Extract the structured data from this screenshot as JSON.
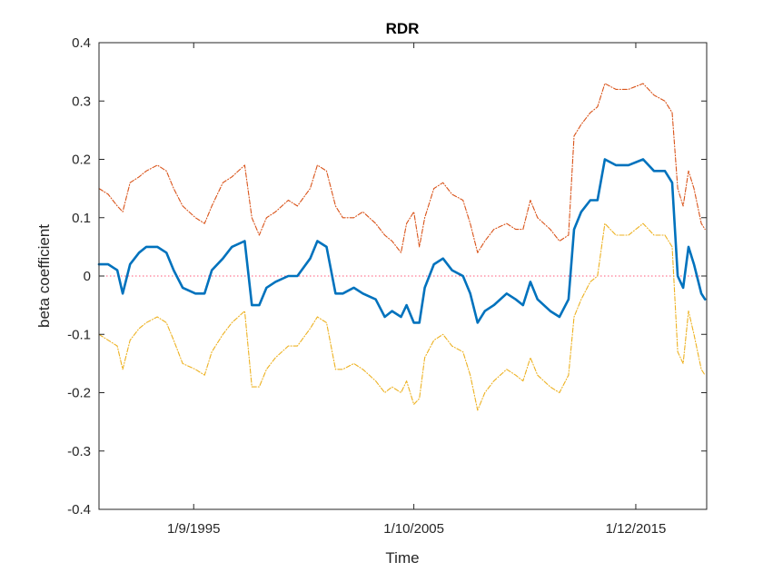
{
  "chart_data": {
    "type": "line",
    "title": "RDR",
    "xlabel": "Time",
    "ylabel": "beta coefficient",
    "xlim": [
      "1991-05-01",
      "2019-03-01"
    ],
    "ylim": [
      -0.4,
      0.4
    ],
    "yticks": [
      -0.4,
      -0.3,
      -0.2,
      -0.1,
      0,
      0.1,
      0.2,
      0.3,
      0.4
    ],
    "ytick_labels": [
      "-0.4",
      "-0.3",
      "-0.2",
      "-0.1",
      "0",
      "0.1",
      "0.2",
      "0.3",
      "0.4"
    ],
    "xticks": [
      "1995-09-01",
      "2005-10-01",
      "2015-12-01"
    ],
    "xtick_labels": [
      "1/9/1995",
      "1/10/2005",
      "1/12/2015"
    ],
    "grid": false,
    "zero_line": {
      "y": 0,
      "color": "#ff5a7a",
      "style": "dotted"
    },
    "colors": {
      "beta": "#0072bd",
      "upper": "#d95319",
      "lower": "#edb120"
    },
    "series": [
      {
        "key": "upper",
        "style": "dashdot",
        "points": [
          [
            "1991-05-01",
            0.15
          ],
          [
            "1991-10-01",
            0.14
          ],
          [
            "1992-03-01",
            0.12
          ],
          [
            "1992-06-01",
            0.11
          ],
          [
            "1992-10-01",
            0.16
          ],
          [
            "1993-03-01",
            0.17
          ],
          [
            "1993-07-01",
            0.18
          ],
          [
            "1994-01-01",
            0.19
          ],
          [
            "1994-06-01",
            0.18
          ],
          [
            "1994-10-01",
            0.15
          ],
          [
            "1995-03-01",
            0.12
          ],
          [
            "1995-10-01",
            0.1
          ],
          [
            "1996-03-01",
            0.09
          ],
          [
            "1996-07-01",
            0.12
          ],
          [
            "1997-01-01",
            0.16
          ],
          [
            "1997-06-01",
            0.17
          ],
          [
            "1998-01-01",
            0.19
          ],
          [
            "1998-05-01",
            0.1
          ],
          [
            "1998-09-01",
            0.07
          ],
          [
            "1999-01-01",
            0.1
          ],
          [
            "1999-06-01",
            0.11
          ],
          [
            "2000-01-01",
            0.13
          ],
          [
            "2000-06-01",
            0.12
          ],
          [
            "2001-01-01",
            0.15
          ],
          [
            "2001-05-01",
            0.19
          ],
          [
            "2001-10-01",
            0.18
          ],
          [
            "2002-03-01",
            0.12
          ],
          [
            "2002-07-01",
            0.1
          ],
          [
            "2003-01-01",
            0.1
          ],
          [
            "2003-06-01",
            0.11
          ],
          [
            "2004-01-01",
            0.09
          ],
          [
            "2004-06-01",
            0.07
          ],
          [
            "2004-10-01",
            0.06
          ],
          [
            "2005-03-01",
            0.04
          ],
          [
            "2005-06-01",
            0.09
          ],
          [
            "2005-10-01",
            0.11
          ],
          [
            "2006-01-01",
            0.05
          ],
          [
            "2006-04-01",
            0.1
          ],
          [
            "2006-09-01",
            0.15
          ],
          [
            "2007-02-01",
            0.16
          ],
          [
            "2007-07-01",
            0.14
          ],
          [
            "2008-01-01",
            0.13
          ],
          [
            "2008-05-01",
            0.09
          ],
          [
            "2008-09-01",
            0.04
          ],
          [
            "2009-01-01",
            0.06
          ],
          [
            "2009-06-01",
            0.08
          ],
          [
            "2010-01-01",
            0.09
          ],
          [
            "2010-06-01",
            0.08
          ],
          [
            "2010-10-01",
            0.08
          ],
          [
            "2011-02-01",
            0.13
          ],
          [
            "2011-06-01",
            0.1
          ],
          [
            "2012-01-01",
            0.08
          ],
          [
            "2012-06-01",
            0.06
          ],
          [
            "2012-11-01",
            0.07
          ],
          [
            "2013-02-01",
            0.24
          ],
          [
            "2013-06-01",
            0.26
          ],
          [
            "2013-11-01",
            0.28
          ],
          [
            "2014-03-01",
            0.29
          ],
          [
            "2014-07-01",
            0.33
          ],
          [
            "2015-01-01",
            0.32
          ],
          [
            "2015-08-01",
            0.32
          ],
          [
            "2016-04-01",
            0.33
          ],
          [
            "2016-10-01",
            0.31
          ],
          [
            "2017-04-01",
            0.3
          ],
          [
            "2017-08-01",
            0.28
          ],
          [
            "2017-11-01",
            0.15
          ],
          [
            "2018-02-01",
            0.12
          ],
          [
            "2018-05-01",
            0.18
          ],
          [
            "2018-08-01",
            0.15
          ],
          [
            "2018-12-01",
            0.09
          ],
          [
            "2019-02-01",
            0.08
          ]
        ]
      },
      {
        "key": "beta",
        "style": "solid",
        "points": [
          [
            "1991-05-01",
            0.02
          ],
          [
            "1991-10-01",
            0.02
          ],
          [
            "1992-03-01",
            0.01
          ],
          [
            "1992-06-01",
            -0.03
          ],
          [
            "1992-10-01",
            0.02
          ],
          [
            "1993-03-01",
            0.04
          ],
          [
            "1993-07-01",
            0.05
          ],
          [
            "1994-01-01",
            0.05
          ],
          [
            "1994-06-01",
            0.04
          ],
          [
            "1994-10-01",
            0.01
          ],
          [
            "1995-03-01",
            -0.02
          ],
          [
            "1995-10-01",
            -0.03
          ],
          [
            "1996-03-01",
            -0.03
          ],
          [
            "1996-07-01",
            0.01
          ],
          [
            "1997-01-01",
            0.03
          ],
          [
            "1997-06-01",
            0.05
          ],
          [
            "1998-01-01",
            0.06
          ],
          [
            "1998-05-01",
            -0.05
          ],
          [
            "1998-09-01",
            -0.05
          ],
          [
            "1999-01-01",
            -0.02
          ],
          [
            "1999-06-01",
            -0.01
          ],
          [
            "2000-01-01",
            0.0
          ],
          [
            "2000-06-01",
            0.0
          ],
          [
            "2001-01-01",
            0.03
          ],
          [
            "2001-05-01",
            0.06
          ],
          [
            "2001-10-01",
            0.05
          ],
          [
            "2002-03-01",
            -0.03
          ],
          [
            "2002-07-01",
            -0.03
          ],
          [
            "2003-01-01",
            -0.02
          ],
          [
            "2003-06-01",
            -0.03
          ],
          [
            "2004-01-01",
            -0.04
          ],
          [
            "2004-06-01",
            -0.07
          ],
          [
            "2004-10-01",
            -0.06
          ],
          [
            "2005-03-01",
            -0.07
          ],
          [
            "2005-06-01",
            -0.05
          ],
          [
            "2005-10-01",
            -0.08
          ],
          [
            "2006-01-01",
            -0.08
          ],
          [
            "2006-04-01",
            -0.02
          ],
          [
            "2006-09-01",
            0.02
          ],
          [
            "2007-02-01",
            0.03
          ],
          [
            "2007-07-01",
            0.01
          ],
          [
            "2008-01-01",
            0.0
          ],
          [
            "2008-05-01",
            -0.03
          ],
          [
            "2008-09-01",
            -0.08
          ],
          [
            "2009-01-01",
            -0.06
          ],
          [
            "2009-06-01",
            -0.05
          ],
          [
            "2010-01-01",
            -0.03
          ],
          [
            "2010-06-01",
            -0.04
          ],
          [
            "2010-10-01",
            -0.05
          ],
          [
            "2011-02-01",
            -0.01
          ],
          [
            "2011-06-01",
            -0.04
          ],
          [
            "2012-01-01",
            -0.06
          ],
          [
            "2012-06-01",
            -0.07
          ],
          [
            "2012-11-01",
            -0.04
          ],
          [
            "2013-02-01",
            0.08
          ],
          [
            "2013-06-01",
            0.11
          ],
          [
            "2013-11-01",
            0.13
          ],
          [
            "2014-03-01",
            0.13
          ],
          [
            "2014-07-01",
            0.2
          ],
          [
            "2015-01-01",
            0.19
          ],
          [
            "2015-08-01",
            0.19
          ],
          [
            "2016-04-01",
            0.2
          ],
          [
            "2016-10-01",
            0.18
          ],
          [
            "2017-04-01",
            0.18
          ],
          [
            "2017-08-01",
            0.16
          ],
          [
            "2017-11-01",
            0.0
          ],
          [
            "2018-02-01",
            -0.02
          ],
          [
            "2018-05-01",
            0.05
          ],
          [
            "2018-08-01",
            0.02
          ],
          [
            "2018-12-01",
            -0.03
          ],
          [
            "2019-02-01",
            -0.04
          ]
        ]
      },
      {
        "key": "lower",
        "style": "dashdot",
        "points": [
          [
            "1991-05-01",
            -0.1
          ],
          [
            "1991-10-01",
            -0.11
          ],
          [
            "1992-03-01",
            -0.12
          ],
          [
            "1992-06-01",
            -0.16
          ],
          [
            "1992-10-01",
            -0.11
          ],
          [
            "1993-03-01",
            -0.09
          ],
          [
            "1993-07-01",
            -0.08
          ],
          [
            "1994-01-01",
            -0.07
          ],
          [
            "1994-06-01",
            -0.08
          ],
          [
            "1994-10-01",
            -0.11
          ],
          [
            "1995-03-01",
            -0.15
          ],
          [
            "1995-10-01",
            -0.16
          ],
          [
            "1996-03-01",
            -0.17
          ],
          [
            "1996-07-01",
            -0.13
          ],
          [
            "1997-01-01",
            -0.1
          ],
          [
            "1997-06-01",
            -0.08
          ],
          [
            "1998-01-01",
            -0.06
          ],
          [
            "1998-05-01",
            -0.19
          ],
          [
            "1998-09-01",
            -0.19
          ],
          [
            "1999-01-01",
            -0.16
          ],
          [
            "1999-06-01",
            -0.14
          ],
          [
            "2000-01-01",
            -0.12
          ],
          [
            "2000-06-01",
            -0.12
          ],
          [
            "2001-01-01",
            -0.09
          ],
          [
            "2001-05-01",
            -0.07
          ],
          [
            "2001-10-01",
            -0.08
          ],
          [
            "2002-03-01",
            -0.16
          ],
          [
            "2002-07-01",
            -0.16
          ],
          [
            "2003-01-01",
            -0.15
          ],
          [
            "2003-06-01",
            -0.16
          ],
          [
            "2004-01-01",
            -0.18
          ],
          [
            "2004-06-01",
            -0.2
          ],
          [
            "2004-10-01",
            -0.19
          ],
          [
            "2005-03-01",
            -0.2
          ],
          [
            "2005-06-01",
            -0.18
          ],
          [
            "2005-10-01",
            -0.22
          ],
          [
            "2006-01-01",
            -0.21
          ],
          [
            "2006-04-01",
            -0.14
          ],
          [
            "2006-09-01",
            -0.11
          ],
          [
            "2007-02-01",
            -0.1
          ],
          [
            "2007-07-01",
            -0.12
          ],
          [
            "2008-01-01",
            -0.13
          ],
          [
            "2008-05-01",
            -0.17
          ],
          [
            "2008-09-01",
            -0.23
          ],
          [
            "2009-01-01",
            -0.2
          ],
          [
            "2009-06-01",
            -0.18
          ],
          [
            "2010-01-01",
            -0.16
          ],
          [
            "2010-06-01",
            -0.17
          ],
          [
            "2010-10-01",
            -0.18
          ],
          [
            "2011-02-01",
            -0.14
          ],
          [
            "2011-06-01",
            -0.17
          ],
          [
            "2012-01-01",
            -0.19
          ],
          [
            "2012-06-01",
            -0.2
          ],
          [
            "2012-11-01",
            -0.17
          ],
          [
            "2013-02-01",
            -0.07
          ],
          [
            "2013-06-01",
            -0.04
          ],
          [
            "2013-11-01",
            -0.01
          ],
          [
            "2014-03-01",
            0.0
          ],
          [
            "2014-07-01",
            0.09
          ],
          [
            "2015-01-01",
            0.07
          ],
          [
            "2015-08-01",
            0.07
          ],
          [
            "2016-04-01",
            0.09
          ],
          [
            "2016-10-01",
            0.07
          ],
          [
            "2017-04-01",
            0.07
          ],
          [
            "2017-08-01",
            0.05
          ],
          [
            "2017-11-01",
            -0.13
          ],
          [
            "2018-02-01",
            -0.15
          ],
          [
            "2018-05-01",
            -0.06
          ],
          [
            "2018-08-01",
            -0.1
          ],
          [
            "2018-12-01",
            -0.16
          ],
          [
            "2019-02-01",
            -0.17
          ]
        ]
      }
    ]
  }
}
